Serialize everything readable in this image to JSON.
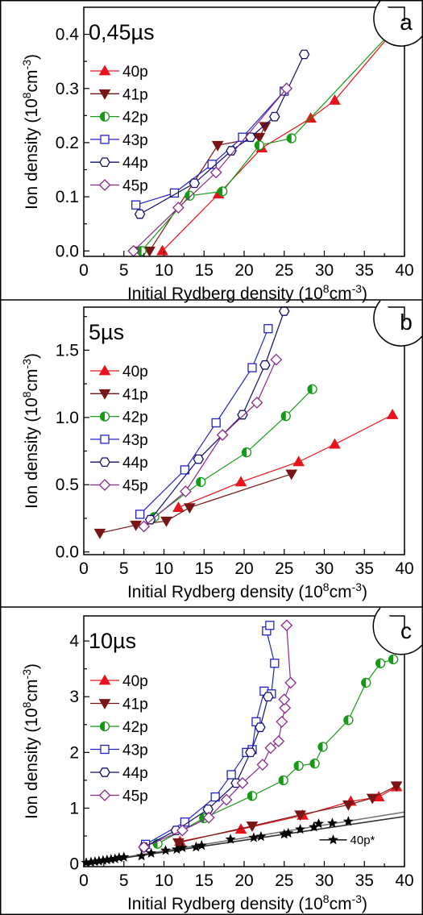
{
  "chart_data": [
    {
      "type": "line",
      "panel_label": "a",
      "duration": "0,45µs",
      "xlabel": "Initial Rydberg density (10⁸cm⁻³)",
      "ylabel": "Ion density (10⁸cm⁻³)",
      "xlim": [
        0,
        40
      ],
      "ylim": [
        -0.01,
        0.45
      ],
      "xticks": [
        "0",
        "5",
        "10",
        "15",
        "20",
        "25",
        "30",
        "35",
        "40"
      ],
      "yticks": [
        "0.0",
        "0.1",
        "0.2",
        "0.3",
        "0.4"
      ],
      "legend_position": "top-left",
      "series": [
        {
          "name": "40p",
          "color": "#e8141c",
          "marker": "triangle-up",
          "x": [
            9.8,
            16.8,
            22.2,
            28.3,
            31.3,
            40
          ],
          "y": [
            0.0,
            0.105,
            0.19,
            0.245,
            0.278,
            0.43
          ]
        },
        {
          "name": "41p",
          "color": "#7a1515",
          "marker": "triangle-down",
          "x": [
            7.0,
            8.2,
            16.7,
            21.9,
            22.6
          ],
          "y": [
            0.0,
            0.0,
            0.195,
            0.21,
            0.23
          ]
        },
        {
          "name": "42p",
          "color": "#159a15",
          "marker": "half-circle",
          "x": [
            7.2,
            13.2,
            17.3,
            21.9,
            25.9,
            40
          ],
          "y": [
            0.0,
            0.102,
            0.11,
            0.195,
            0.208,
            0.43
          ]
        },
        {
          "name": "43p",
          "color": "#2222cc",
          "marker": "square",
          "x": [
            6.5,
            11.3,
            16.0,
            19.8,
            25.0
          ],
          "y": [
            0.085,
            0.107,
            0.16,
            0.21,
            0.295
          ]
        },
        {
          "name": "44p",
          "color": "#10106a",
          "marker": "hexagon",
          "x": [
            7.0,
            13.8,
            18.4,
            20.8,
            23.8,
            27.5
          ],
          "y": [
            0.068,
            0.125,
            0.185,
            0.21,
            0.248,
            0.363
          ]
        },
        {
          "name": "45p",
          "color": "#8a2a8a",
          "marker": "diamond",
          "x": [
            6.2,
            11.8,
            16.5,
            25.3
          ],
          "y": [
            0.0,
            0.08,
            0.145,
            0.3
          ]
        }
      ]
    },
    {
      "type": "line",
      "panel_label": "b",
      "duration": "5µs",
      "xlabel": "Initial Rydberg density (10⁸cm⁻³)",
      "ylabel": "Ion density (10⁸cm⁻³)",
      "xlim": [
        0,
        40
      ],
      "ylim": [
        -0.02,
        1.82
      ],
      "xticks": [
        "0",
        "5",
        "10",
        "15",
        "20",
        "25",
        "30",
        "35",
        "40"
      ],
      "yticks": [
        "0.0",
        "0.5",
        "1.0",
        "1.5"
      ],
      "legend_position": "top-left",
      "series": [
        {
          "name": "40p",
          "color": "#e8141c",
          "marker": "triangle-up",
          "x": [
            11.8,
            19.6,
            26.8,
            31.3,
            38.5
          ],
          "y": [
            0.33,
            0.52,
            0.67,
            0.8,
            1.02
          ]
        },
        {
          "name": "41p",
          "color": "#7a1515",
          "marker": "triangle-down",
          "x": [
            2.0,
            6.5,
            10.3,
            13.2,
            25.9
          ],
          "y": [
            0.14,
            0.2,
            0.23,
            0.33,
            0.58
          ]
        },
        {
          "name": "42p",
          "color": "#159a15",
          "marker": "half-circle",
          "x": [
            8.8,
            14.6,
            20.3,
            25.2,
            28.5
          ],
          "y": [
            0.26,
            0.52,
            0.74,
            1.01,
            1.21
          ]
        },
        {
          "name": "43p",
          "color": "#2222cc",
          "marker": "square",
          "x": [
            7.0,
            12.6,
            16.5,
            21.0,
            23.0
          ],
          "y": [
            0.28,
            0.61,
            0.96,
            1.37,
            1.66
          ]
        },
        {
          "name": "44p",
          "color": "#10106a",
          "marker": "hexagon",
          "x": [
            8.3,
            14.3,
            19.8,
            22.6,
            25.0
          ],
          "y": [
            0.24,
            0.69,
            1.02,
            1.39,
            1.79
          ]
        },
        {
          "name": "45p",
          "color": "#8a2a8a",
          "marker": "diamond",
          "x": [
            7.5,
            12.7,
            17.3,
            21.6,
            24.0
          ],
          "y": [
            0.19,
            0.45,
            0.87,
            1.11,
            1.43
          ]
        }
      ]
    },
    {
      "type": "line",
      "panel_label": "c",
      "duration": "10µs",
      "xlabel": "Initial Rydberg density (10⁸cm⁻³)",
      "ylabel": "Ion density (10⁸cm⁻³)",
      "xlim": [
        0,
        40
      ],
      "ylim": [
        -0.05,
        4.45
      ],
      "xticks": [
        "0",
        "5",
        "10",
        "15",
        "20",
        "25",
        "30",
        "35",
        "40"
      ],
      "yticks": [
        "0",
        "1",
        "2",
        "3",
        "4"
      ],
      "legend_position": "top-left",
      "inset_legend": "40p*",
      "series": [
        {
          "name": "40p",
          "color": "#e8141c",
          "marker": "triangle-up",
          "x": [
            12.0,
            19.6,
            27.3,
            33.3,
            36.8,
            39.0
          ],
          "y": [
            0.4,
            0.62,
            0.87,
            1.12,
            1.2,
            1.38
          ]
        },
        {
          "name": "41p",
          "color": "#7a1515",
          "marker": "triangle-down",
          "x": [
            11.8,
            21.0,
            27.0,
            33.0,
            36.0,
            39.0
          ],
          "y": [
            0.38,
            0.68,
            0.88,
            1.06,
            1.18,
            1.4
          ]
        },
        {
          "name": "42p",
          "color": "#159a15",
          "marker": "half-circle",
          "x": [
            9.2,
            15.0,
            21.0,
            24.9,
            26.8,
            28.8,
            29.8,
            33.0,
            35.2,
            37.0,
            38.6
          ],
          "y": [
            0.36,
            0.82,
            1.22,
            1.5,
            1.76,
            1.8,
            2.1,
            2.58,
            3.25,
            3.6,
            3.67
          ]
        },
        {
          "name": "43p",
          "color": "#2222cc",
          "marker": "square",
          "x": [
            7.7,
            12.6,
            16.4,
            18.4,
            20.3,
            21.0,
            21.5,
            22.5,
            23.4,
            23.8,
            22.8,
            23.2
          ],
          "y": [
            0.35,
            0.75,
            1.2,
            1.6,
            2.0,
            2.05,
            2.55,
            3.1,
            3.05,
            3.6,
            4.18,
            4.28
          ]
        },
        {
          "name": "44p",
          "color": "#10106a",
          "marker": "hexagon",
          "x": [
            7.5,
            11.5,
            15.5,
            19.0,
            20.8,
            22.0,
            23.0
          ],
          "y": [
            0.3,
            0.6,
            0.98,
            1.45,
            2.0,
            2.45,
            3.0
          ]
        },
        {
          "name": "45p",
          "color": "#8a2a8a",
          "marker": "diamond",
          "x": [
            7.5,
            12.3,
            15.6,
            17.8,
            19.8,
            22.3,
            23.3,
            24.3,
            24.7,
            25.1,
            25.0,
            25.8,
            25.3
          ],
          "y": [
            0.3,
            0.6,
            0.83,
            1.15,
            1.45,
            1.78,
            2.08,
            2.2,
            2.55,
            2.8,
            2.95,
            3.25,
            4.28
          ]
        },
        {
          "name": "40p*",
          "color": "#000000",
          "marker": "star",
          "x": [
            0.3,
            0.9,
            1.4,
            1.9,
            2.4,
            2.9,
            3.4,
            3.9,
            4.4,
            5.0,
            7.2,
            8.4,
            10.2,
            11.6,
            12.3,
            14.0,
            14.7,
            18.3,
            21.2,
            22.1,
            25.0,
            25.5,
            27.0,
            28.7,
            29.3,
            31.0,
            33.0
          ],
          "y": [
            0.02,
            0.03,
            0.04,
            0.05,
            0.06,
            0.07,
            0.08,
            0.09,
            0.11,
            0.12,
            0.14,
            0.19,
            0.24,
            0.26,
            0.29,
            0.3,
            0.33,
            0.44,
            0.47,
            0.49,
            0.53,
            0.55,
            0.62,
            0.66,
            0.72,
            0.73,
            0.76
          ]
        }
      ],
      "fit_lines": [
        {
          "color": "#777777",
          "x": [
            0,
            40
          ],
          "y": [
            0.0,
            0.93
          ]
        },
        {
          "color": "#333333",
          "x": [
            0,
            40
          ],
          "y": [
            0.0,
            0.85
          ]
        }
      ]
    }
  ]
}
